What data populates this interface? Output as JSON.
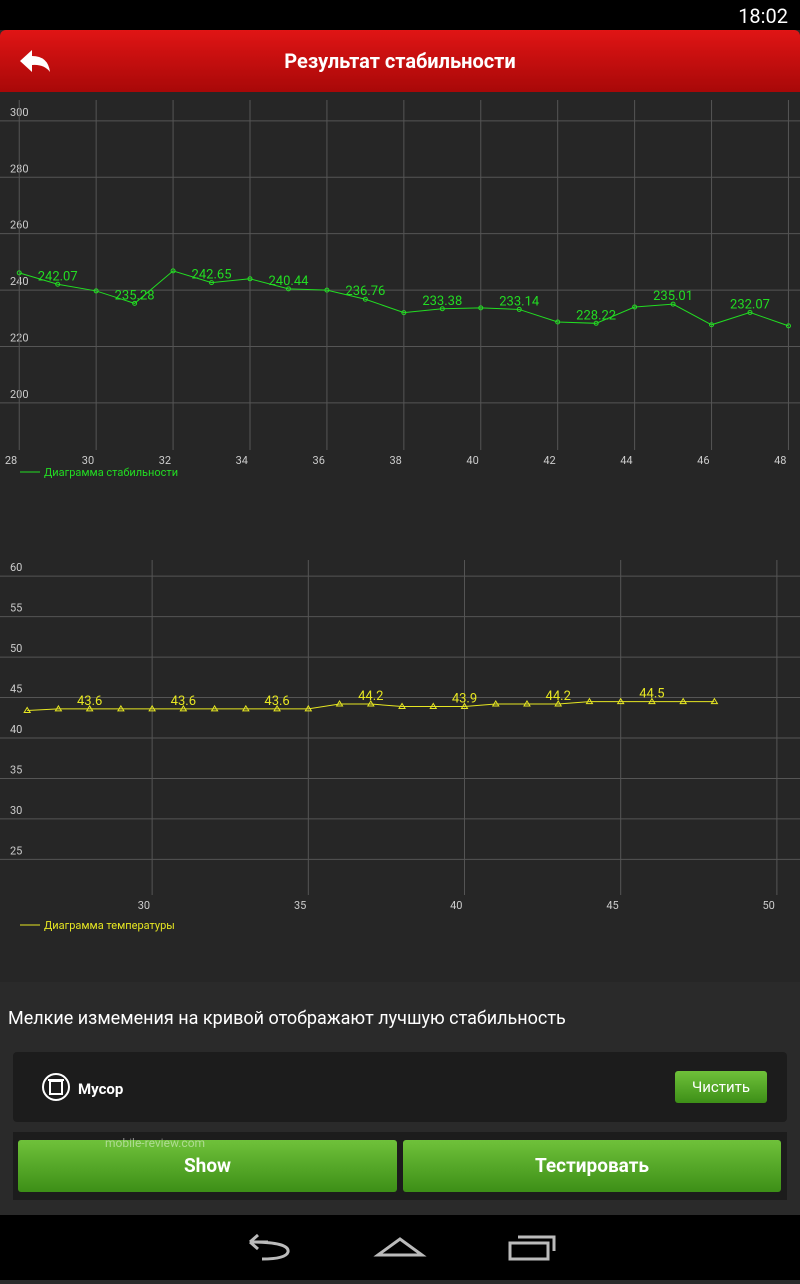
{
  "status_bar": {
    "time": "18:02"
  },
  "header": {
    "title": "Результат стабильности"
  },
  "chart_data": [
    {
      "type": "line",
      "x": [
        28,
        29,
        30,
        31,
        32,
        33,
        34,
        35,
        36,
        37,
        38,
        39,
        40,
        41,
        42,
        43,
        44,
        45,
        46,
        47,
        48
      ],
      "series": [
        {
          "name": "Диаграмма стабильности",
          "color": "#22dd22",
          "marker": "circle",
          "values": [
            246.1,
            242.07,
            239.7,
            235.28,
            246.8,
            242.65,
            244,
            240.44,
            240,
            236.76,
            232,
            233.38,
            233.7,
            233.14,
            228.7,
            228.22,
            234,
            235.01,
            227.7,
            232.07,
            227.3
          ]
        }
      ],
      "xlim": [
        27.5,
        48.3
      ],
      "ylim": [
        183.3,
        307.4
      ],
      "xticks": [
        28,
        30,
        32,
        34,
        36,
        38,
        40,
        42,
        44,
        46,
        48
      ],
      "yticks": [
        200,
        220,
        240,
        260,
        280,
        300
      ],
      "grid": true
    },
    {
      "type": "line",
      "x": [
        26,
        27,
        28,
        29,
        30,
        31,
        32,
        33,
        34,
        35,
        36,
        37,
        38,
        39,
        40,
        41,
        42,
        43,
        44,
        45,
        46,
        47,
        48
      ],
      "series": [
        {
          "name": "Диаграмма температуры",
          "color": "#e6e622",
          "marker": "triangle",
          "values": [
            43.4,
            43.6,
            43.6,
            43.6,
            43.6,
            43.6,
            43.6,
            43.6,
            43.6,
            43.6,
            44.2,
            44.2,
            43.9,
            43.9,
            43.9,
            44.2,
            44.2,
            44.2,
            44.5,
            44.5,
            44.5,
            44.5,
            44.5
          ]
        }
      ],
      "xlim": [
        25.13,
        50.74
      ],
      "ylim": [
        20.6,
        62
      ],
      "xticks": [
        30,
        35,
        40,
        45,
        50
      ],
      "yticks": [
        25,
        30,
        35,
        40,
        45,
        50,
        55,
        60
      ],
      "grid": true
    }
  ],
  "note": "Мелкие измемения на кривой отображают лучшую стабильность",
  "trash": {
    "label": "Мусор",
    "button": "Чистить"
  },
  "buttons": [
    "Show",
    "Тестировать"
  ],
  "watermark": "mobile-review.com"
}
